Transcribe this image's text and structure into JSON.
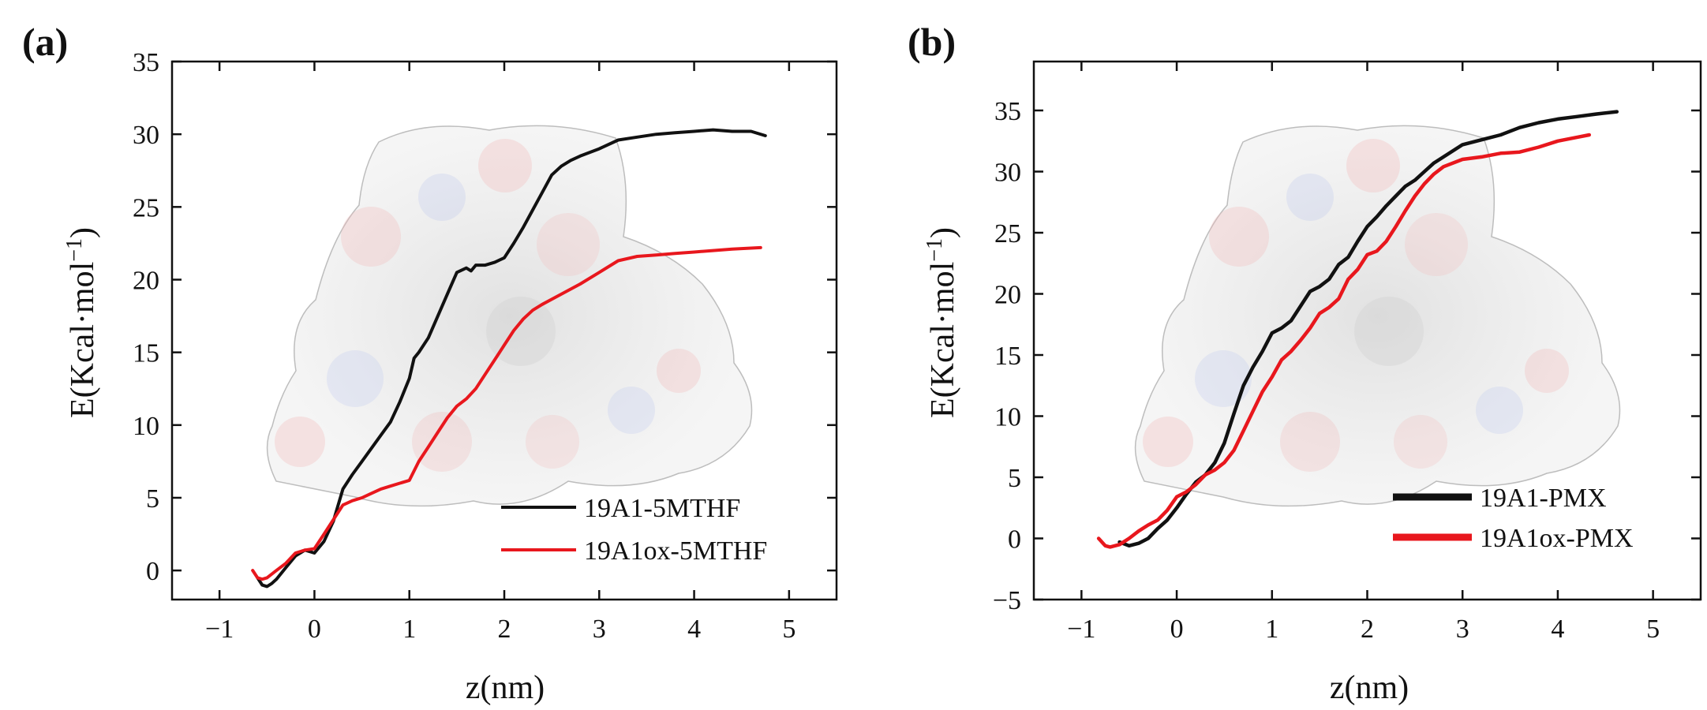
{
  "figure": {
    "colors": {
      "black": "#111111",
      "red": "#e8171d",
      "axis": "#111111"
    }
  },
  "chart_data": [
    {
      "id": "a",
      "panel_label": "(a)",
      "type": "line",
      "xlabel": "z(nm)",
      "ylabel_main": "E(Kcal·mol",
      "ylabel_sup": "−1",
      "ylabel_close": ")",
      "xlim": [
        -1.5,
        5.5
      ],
      "ylim": [
        -2,
        35
      ],
      "xticks": [
        -1,
        0,
        1,
        2,
        3,
        4,
        5
      ],
      "xtick_labels": [
        "−1",
        "0",
        "1",
        "2",
        "3",
        "4",
        "5"
      ],
      "yticks": [
        0,
        5,
        10,
        15,
        20,
        25,
        30,
        35
      ],
      "ytick_labels": [
        "0",
        "5",
        "10",
        "15",
        "20",
        "25",
        "30",
        "35"
      ],
      "legend_position": "bottom-right",
      "background": "semi-transparent protein surface rendering",
      "series": [
        {
          "name": "19A1-5MTHF",
          "color": "#111111",
          "x": [
            -0.6,
            -0.55,
            -0.5,
            -0.45,
            -0.4,
            -0.3,
            -0.2,
            -0.1,
            0.0,
            0.1,
            0.2,
            0.3,
            0.4,
            0.5,
            0.6,
            0.7,
            0.8,
            0.9,
            1.0,
            1.05,
            1.1,
            1.2,
            1.3,
            1.4,
            1.5,
            1.6,
            1.65,
            1.7,
            1.8,
            1.9,
            2.0,
            2.1,
            2.2,
            2.3,
            2.4,
            2.5,
            2.6,
            2.7,
            2.8,
            3.0,
            3.2,
            3.4,
            3.6,
            3.8,
            4.0,
            4.2,
            4.4,
            4.6,
            4.75
          ],
          "y": [
            -0.5,
            -1.0,
            -1.1,
            -0.9,
            -0.6,
            0.2,
            1.0,
            1.4,
            1.2,
            2.0,
            3.4,
            5.6,
            6.6,
            7.5,
            8.4,
            9.3,
            10.2,
            11.6,
            13.2,
            14.6,
            15.0,
            16.0,
            17.5,
            19.0,
            20.5,
            20.8,
            20.6,
            21.0,
            21.0,
            21.2,
            21.5,
            22.5,
            23.6,
            24.8,
            26.0,
            27.2,
            27.8,
            28.2,
            28.5,
            29.0,
            29.6,
            29.8,
            30.0,
            30.1,
            30.2,
            30.3,
            30.2,
            30.2,
            29.9
          ]
        },
        {
          "name": "19A1ox-5MTHF",
          "color": "#e8171d",
          "x": [
            -0.65,
            -0.6,
            -0.55,
            -0.5,
            -0.4,
            -0.3,
            -0.2,
            -0.1,
            0.0,
            0.1,
            0.2,
            0.3,
            0.4,
            0.5,
            0.6,
            0.7,
            0.8,
            0.9,
            1.0,
            1.1,
            1.2,
            1.3,
            1.4,
            1.5,
            1.6,
            1.7,
            1.8,
            1.9,
            2.0,
            2.1,
            2.2,
            2.3,
            2.4,
            2.6,
            2.8,
            3.0,
            3.2,
            3.4,
            3.6,
            3.8,
            4.0,
            4.2,
            4.4,
            4.7
          ],
          "y": [
            0.0,
            -0.5,
            -0.6,
            -0.5,
            0.0,
            0.5,
            1.2,
            1.4,
            1.5,
            2.5,
            3.5,
            4.5,
            4.8,
            5.0,
            5.3,
            5.6,
            5.8,
            6.0,
            6.2,
            7.5,
            8.5,
            9.5,
            10.5,
            11.3,
            11.8,
            12.5,
            13.5,
            14.5,
            15.5,
            16.5,
            17.3,
            17.9,
            18.3,
            19.0,
            19.7,
            20.5,
            21.3,
            21.6,
            21.7,
            21.8,
            21.9,
            22.0,
            22.1,
            22.2
          ]
        }
      ]
    },
    {
      "id": "b",
      "panel_label": "(b)",
      "type": "line",
      "xlabel": "z(nm)",
      "ylabel_main": "E(Kcal·mol",
      "ylabel_sup": "−1",
      "ylabel_close": ")",
      "xlim": [
        -1.5,
        5.5
      ],
      "ylim": [
        -5,
        39
      ],
      "xticks": [
        -1,
        0,
        1,
        2,
        3,
        4,
        5
      ],
      "xtick_labels": [
        "−1",
        "0",
        "1",
        "2",
        "3",
        "4",
        "5"
      ],
      "yticks": [
        -5,
        0,
        5,
        10,
        15,
        20,
        25,
        30,
        35
      ],
      "ytick_labels": [
        "−5",
        "0",
        "5",
        "10",
        "15",
        "20",
        "25",
        "30",
        "35"
      ],
      "legend_position": "bottom-right",
      "background": "semi-transparent protein surface rendering",
      "series": [
        {
          "name": "19A1-PMX",
          "color": "#111111",
          "x": [
            -0.6,
            -0.5,
            -0.4,
            -0.3,
            -0.2,
            -0.1,
            0.0,
            0.1,
            0.2,
            0.3,
            0.4,
            0.5,
            0.6,
            0.7,
            0.8,
            0.9,
            1.0,
            1.1,
            1.2,
            1.3,
            1.4,
            1.5,
            1.6,
            1.7,
            1.8,
            1.9,
            2.0,
            2.1,
            2.2,
            2.3,
            2.4,
            2.5,
            2.6,
            2.7,
            2.8,
            3.0,
            3.2,
            3.4,
            3.6,
            3.8,
            4.0,
            4.2,
            4.4,
            4.62
          ],
          "y": [
            -0.3,
            -0.6,
            -0.4,
            0.0,
            0.8,
            1.5,
            2.5,
            3.6,
            4.6,
            5.2,
            6.2,
            7.8,
            10.2,
            12.5,
            14.0,
            15.3,
            16.8,
            17.2,
            17.8,
            19.0,
            20.2,
            20.6,
            21.2,
            22.4,
            23.0,
            24.3,
            25.5,
            26.3,
            27.2,
            28.0,
            28.8,
            29.3,
            30.0,
            30.7,
            31.2,
            32.2,
            32.6,
            33.0,
            33.6,
            34.0,
            34.3,
            34.5,
            34.7,
            34.9
          ]
        },
        {
          "name": "19A1ox-PMX",
          "color": "#e8171d",
          "x": [
            -0.82,
            -0.75,
            -0.7,
            -0.6,
            -0.5,
            -0.4,
            -0.3,
            -0.2,
            -0.1,
            0.0,
            0.1,
            0.2,
            0.3,
            0.4,
            0.5,
            0.6,
            0.7,
            0.8,
            0.9,
            1.0,
            1.1,
            1.2,
            1.3,
            1.4,
            1.5,
            1.6,
            1.7,
            1.8,
            1.9,
            2.0,
            2.1,
            2.2,
            2.3,
            2.4,
            2.5,
            2.6,
            2.7,
            2.8,
            3.0,
            3.2,
            3.4,
            3.6,
            3.8,
            4.0,
            4.2,
            4.33
          ],
          "y": [
            0.0,
            -0.6,
            -0.7,
            -0.5,
            0.0,
            0.6,
            1.1,
            1.5,
            2.3,
            3.4,
            3.8,
            4.4,
            5.2,
            5.6,
            6.2,
            7.2,
            8.8,
            10.4,
            12.0,
            13.2,
            14.6,
            15.3,
            16.2,
            17.2,
            18.4,
            18.9,
            19.6,
            21.2,
            22.0,
            23.2,
            23.5,
            24.3,
            25.5,
            26.8,
            28.0,
            29.0,
            29.8,
            30.4,
            31.0,
            31.2,
            31.5,
            31.6,
            32.0,
            32.5,
            32.8,
            33.0
          ]
        }
      ]
    }
  ]
}
